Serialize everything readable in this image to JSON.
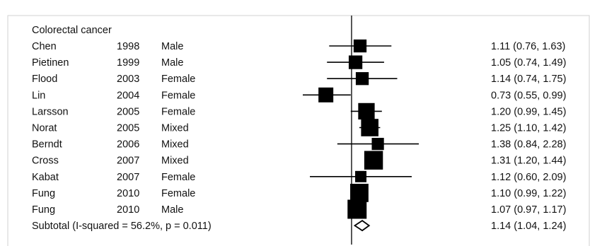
{
  "chart_data": {
    "type": "forest",
    "group_label": "Colorectal cancer",
    "studies": [
      {
        "author": "Chen",
        "year": "1998",
        "sex": "Male",
        "estimate": 1.11,
        "lower": 0.76,
        "upper": 1.63,
        "ci_text": "1.11 (0.76, 1.63)",
        "weight": 5
      },
      {
        "author": "Pietinen",
        "year": "1999",
        "sex": "Male",
        "estimate": 1.05,
        "lower": 0.74,
        "upper": 1.49,
        "ci_text": "1.05 (0.74, 1.49)",
        "weight": 6
      },
      {
        "author": "Flood",
        "year": "2003",
        "sex": "Female",
        "estimate": 1.14,
        "lower": 0.74,
        "upper": 1.75,
        "ci_text": "1.14 (0.74, 1.75)",
        "weight": 5
      },
      {
        "author": "Lin",
        "year": "2004",
        "sex": "Female",
        "estimate": 0.73,
        "lower": 0.55,
        "upper": 0.99,
        "ci_text": "0.73 (0.55, 0.99)",
        "weight": 8
      },
      {
        "author": "Larsson",
        "year": "2005",
        "sex": "Female",
        "estimate": 1.2,
        "lower": 0.99,
        "upper": 1.45,
        "ci_text": "1.20 (0.99, 1.45)",
        "weight": 11
      },
      {
        "author": "Norat",
        "year": "2005",
        "sex": "Mixed",
        "estimate": 1.25,
        "lower": 1.1,
        "upper": 1.42,
        "ci_text": "1.25 (1.10, 1.42)",
        "weight": 13
      },
      {
        "author": "Berndt",
        "year": "2006",
        "sex": "Mixed",
        "estimate": 1.38,
        "lower": 0.84,
        "upper": 2.28,
        "ci_text": "1.38 (0.84, 2.28)",
        "weight": 4
      },
      {
        "author": "Cross",
        "year": "2007",
        "sex": "Mixed",
        "estimate": 1.31,
        "lower": 1.2,
        "upper": 1.44,
        "ci_text": "1.31 (1.20, 1.44)",
        "weight": 16
      },
      {
        "author": "Kabat",
        "year": "2007",
        "sex": "Female",
        "estimate": 1.12,
        "lower": 0.6,
        "upper": 2.09,
        "ci_text": "1.12 (0.60, 2.09)",
        "weight": 3
      },
      {
        "author": "Fung",
        "year": "2010",
        "sex": "Female",
        "estimate": 1.1,
        "lower": 0.99,
        "upper": 1.22,
        "ci_text": "1.10 (0.99, 1.22)",
        "weight": 15
      },
      {
        "author": "Fung",
        "year": "2010",
        "sex": "Male",
        "estimate": 1.07,
        "lower": 0.97,
        "upper": 1.17,
        "ci_text": "1.07 (0.97, 1.17)",
        "weight": 17
      }
    ],
    "subtotal": {
      "label": "Subtotal  (I-squared = 56.2%, p = 0.011)",
      "estimate": 1.14,
      "lower": 1.04,
      "upper": 1.24,
      "ci_text": "1.14 (1.04, 1.24)"
    },
    "null_value": 1,
    "x_scale": "log",
    "xlim": [
      0.55,
      2.28
    ]
  }
}
